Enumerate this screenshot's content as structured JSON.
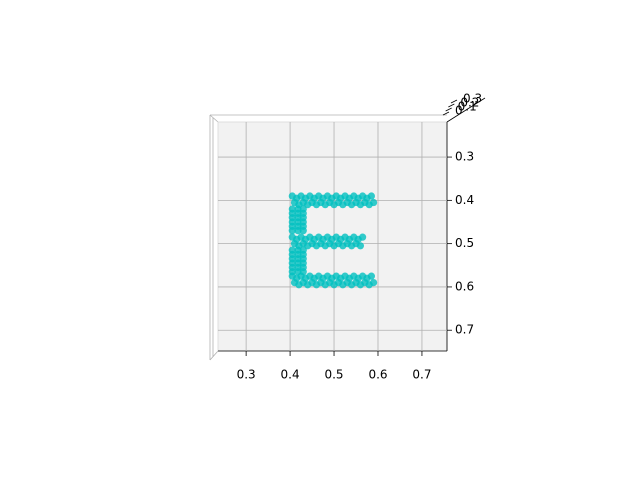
{
  "chart_data": {
    "type": "scatter3d",
    "color": "#00bfbf",
    "grid": true,
    "xlim": [
      0.236,
      0.757
    ],
    "ylim": [
      0.748,
      0.219
    ],
    "xticks": [
      0.3,
      0.4,
      0.5,
      0.6,
      0.7
    ],
    "yticks": [
      0.3,
      0.4,
      0.5,
      0.6,
      0.7
    ],
    "zticks": [
      0.0,
      0.1,
      0.2,
      0.3
    ],
    "x": [
      0.405,
      0.415,
      0.425,
      0.435,
      0.445,
      0.455,
      0.465,
      0.475,
      0.485,
      0.495,
      0.505,
      0.515,
      0.525,
      0.535,
      0.545,
      0.555,
      0.565,
      0.575,
      0.585,
      0.41,
      0.42,
      0.43,
      0.44,
      0.45,
      0.46,
      0.47,
      0.48,
      0.49,
      0.5,
      0.51,
      0.52,
      0.53,
      0.54,
      0.55,
      0.56,
      0.57,
      0.58,
      0.59,
      0.405,
      0.415,
      0.425,
      0.435,
      0.445,
      0.455,
      0.465,
      0.475,
      0.485,
      0.495,
      0.505,
      0.515,
      0.525,
      0.535,
      0.545,
      0.555,
      0.565,
      0.41,
      0.42,
      0.43,
      0.44,
      0.45,
      0.46,
      0.47,
      0.48,
      0.49,
      0.5,
      0.51,
      0.52,
      0.53,
      0.54,
      0.55,
      0.56,
      0.405,
      0.415,
      0.425,
      0.435,
      0.445,
      0.455,
      0.465,
      0.475,
      0.485,
      0.495,
      0.505,
      0.515,
      0.525,
      0.535,
      0.545,
      0.555,
      0.565,
      0.575,
      0.585,
      0.41,
      0.42,
      0.43,
      0.44,
      0.45,
      0.46,
      0.47,
      0.48,
      0.49,
      0.5,
      0.51,
      0.52,
      0.53,
      0.54,
      0.55,
      0.56,
      0.57,
      0.58,
      0.59,
      0.405,
      0.418,
      0.43,
      0.405,
      0.418,
      0.43,
      0.405,
      0.418,
      0.43,
      0.405,
      0.418,
      0.43,
      0.405,
      0.418,
      0.43,
      0.405,
      0.418,
      0.43,
      0.405,
      0.418,
      0.43,
      0.405,
      0.418,
      0.43,
      0.405,
      0.418,
      0.43,
      0.405,
      0.418,
      0.43,
      0.405,
      0.418,
      0.43,
      0.405,
      0.418,
      0.43
    ],
    "y": [
      0.39,
      0.395,
      0.39,
      0.395,
      0.39,
      0.395,
      0.39,
      0.395,
      0.39,
      0.395,
      0.39,
      0.395,
      0.39,
      0.395,
      0.39,
      0.395,
      0.39,
      0.395,
      0.39,
      0.405,
      0.41,
      0.405,
      0.41,
      0.405,
      0.41,
      0.405,
      0.41,
      0.405,
      0.41,
      0.405,
      0.41,
      0.405,
      0.41,
      0.405,
      0.41,
      0.405,
      0.41,
      0.405,
      0.485,
      0.49,
      0.485,
      0.49,
      0.485,
      0.49,
      0.485,
      0.49,
      0.485,
      0.49,
      0.485,
      0.49,
      0.485,
      0.49,
      0.485,
      0.49,
      0.485,
      0.5,
      0.505,
      0.5,
      0.505,
      0.5,
      0.505,
      0.5,
      0.505,
      0.5,
      0.505,
      0.5,
      0.505,
      0.5,
      0.505,
      0.5,
      0.505,
      0.575,
      0.58,
      0.575,
      0.58,
      0.575,
      0.58,
      0.575,
      0.58,
      0.575,
      0.58,
      0.575,
      0.58,
      0.575,
      0.58,
      0.575,
      0.58,
      0.575,
      0.58,
      0.575,
      0.59,
      0.595,
      0.59,
      0.595,
      0.59,
      0.595,
      0.59,
      0.595,
      0.59,
      0.595,
      0.59,
      0.595,
      0.59,
      0.595,
      0.59,
      0.595,
      0.59,
      0.595,
      0.59,
      0.42,
      0.42,
      0.42,
      0.43,
      0.43,
      0.43,
      0.44,
      0.44,
      0.44,
      0.45,
      0.45,
      0.45,
      0.46,
      0.46,
      0.46,
      0.47,
      0.47,
      0.47,
      0.515,
      0.515,
      0.515,
      0.525,
      0.525,
      0.525,
      0.535,
      0.535,
      0.535,
      0.545,
      0.545,
      0.545,
      0.555,
      0.555,
      0.555,
      0.565,
      0.565,
      0.565
    ]
  }
}
